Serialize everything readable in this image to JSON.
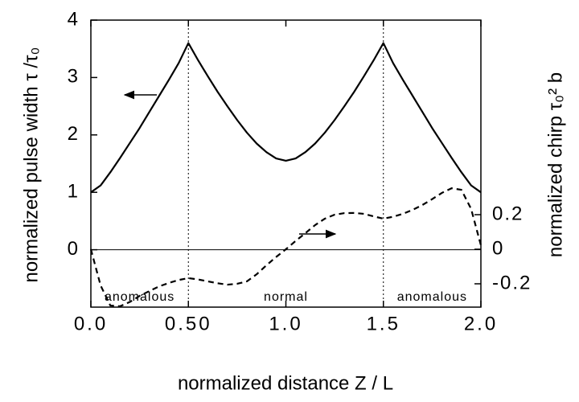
{
  "chart_data": {
    "type": "line",
    "xlabel": "normalized distance  Z / L",
    "ylabel": "normalized pulse width  τ /τ₀",
    "y2label": "normalized chirp  τ₀² b",
    "x": [
      0,
      0.05,
      0.1,
      0.15,
      0.2,
      0.25,
      0.3,
      0.35,
      0.4,
      0.45,
      0.5,
      0.55,
      0.6,
      0.65,
      0.7,
      0.75,
      0.8,
      0.85,
      0.9,
      0.95,
      1.0,
      1.05,
      1.1,
      1.15,
      1.2,
      1.25,
      1.3,
      1.35,
      1.4,
      1.45,
      1.5,
      1.55,
      1.6,
      1.65,
      1.7,
      1.75,
      1.8,
      1.85,
      1.9,
      1.95,
      2.0
    ],
    "series": [
      {
        "color": "#000000",
        "dash": false,
        "values": [
          1.0,
          1.12,
          1.35,
          1.6,
          1.86,
          2.12,
          2.4,
          2.68,
          2.96,
          3.25,
          3.6,
          3.3,
          3.02,
          2.75,
          2.5,
          2.26,
          2.04,
          1.85,
          1.7,
          1.59,
          1.55,
          1.59,
          1.7,
          1.85,
          2.04,
          2.26,
          2.5,
          2.75,
          3.02,
          3.3,
          3.6,
          3.25,
          2.96,
          2.68,
          2.4,
          2.12,
          1.86,
          1.6,
          1.35,
          1.12,
          1.0
        ]
      },
      {
        "color": "#000000",
        "dash": true,
        "axis": "y2",
        "values": [
          0,
          -0.21,
          -0.326,
          -0.33,
          -0.305,
          -0.27,
          -0.242,
          -0.215,
          -0.195,
          -0.178,
          -0.167,
          -0.175,
          -0.186,
          -0.197,
          -0.205,
          -0.2,
          -0.186,
          -0.145,
          -0.093,
          -0.045,
          0,
          0.048,
          0.093,
          0.14,
          0.177,
          0.2,
          0.209,
          0.21,
          0.205,
          0.19,
          0.177,
          0.188,
          0.205,
          0.228,
          0.256,
          0.29,
          0.326,
          0.353,
          0.344,
          0.233,
          0.023
        ]
      }
    ],
    "xlim": [
      0,
      2
    ],
    "xticks": [
      {
        "value": 0,
        "label": "0.0"
      },
      {
        "value": 0.5,
        "label": "0.50"
      },
      {
        "value": 1,
        "label": "1.0"
      },
      {
        "value": 1.5,
        "label": "1.5"
      },
      {
        "value": 2,
        "label": "2.0"
      }
    ],
    "ylim": [
      -1,
      4
    ],
    "yticks": [
      0,
      1,
      2,
      3,
      4
    ],
    "y2lim": [
      -0.335,
      1.326
    ],
    "y2ticks": [
      -0.2,
      0,
      0.2
    ],
    "vlines": [
      0.5,
      1.5
    ],
    "hlines": [
      0
    ],
    "annotations": [
      {
        "text": "anomalous",
        "x": 0.25
      },
      {
        "text": "normal",
        "x": 1.0
      },
      {
        "text": "anomalous",
        "x": 1.75
      }
    ]
  }
}
